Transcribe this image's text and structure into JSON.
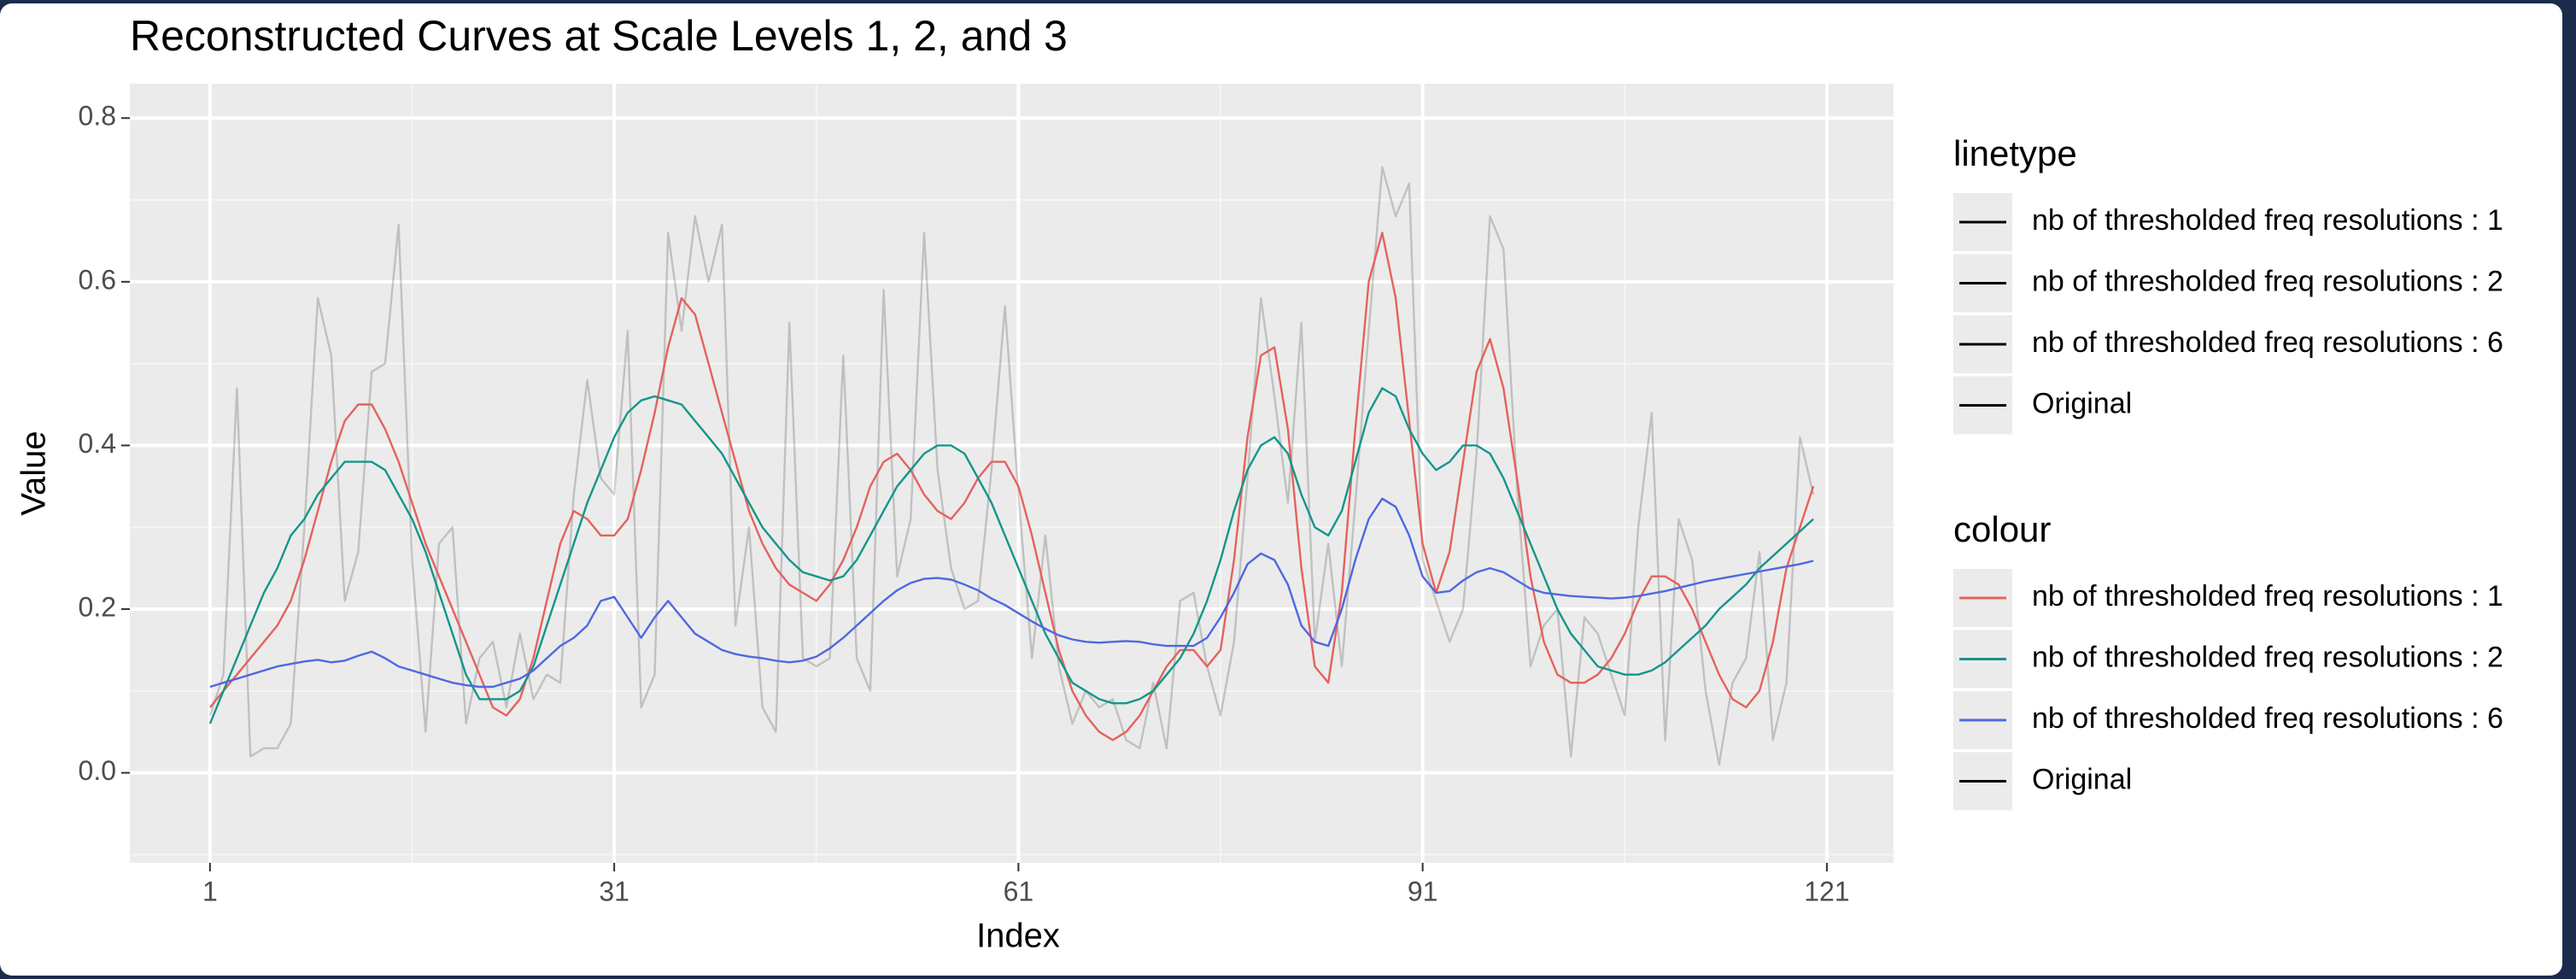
{
  "chart_data": {
    "type": "line",
    "title": "Reconstructed Curves at Scale Levels 1, 2, and 3",
    "x_label": "Index",
    "y_label": "Value",
    "xlim": [
      -4.95,
      125.95
    ],
    "ylim": [
      -0.11,
      0.842
    ],
    "xticks": [
      1,
      31,
      61,
      91,
      121
    ],
    "yticks": [
      {
        "value": 0,
        "label": "0.0"
      },
      {
        "value": 0.2,
        "label": "0.2"
      },
      {
        "value": 0.4,
        "label": "0.4"
      },
      {
        "value": 0.6,
        "label": "0.6"
      },
      {
        "value": 0.8,
        "label": "0.8"
      }
    ],
    "x_minor_ticks": [
      16,
      46,
      76,
      106
    ],
    "y_minor_ticks": [
      -0.1,
      0.1,
      0.3,
      0.5,
      0.7
    ],
    "grid": true,
    "linetype_legend_title": "linetype",
    "colour_legend_title": "colour",
    "x": [
      1,
      2,
      3,
      4,
      5,
      6,
      7,
      8,
      9,
      10,
      11,
      12,
      13,
      14,
      15,
      16,
      17,
      18,
      19,
      20,
      21,
      22,
      23,
      24,
      25,
      26,
      27,
      28,
      29,
      30,
      31,
      32,
      33,
      34,
      35,
      36,
      37,
      38,
      39,
      40,
      41,
      42,
      43,
      44,
      45,
      46,
      47,
      48,
      49,
      50,
      51,
      52,
      53,
      54,
      55,
      56,
      57,
      58,
      59,
      60,
      61,
      62,
      63,
      64,
      65,
      66,
      67,
      68,
      69,
      70,
      71,
      72,
      73,
      74,
      75,
      76,
      77,
      78,
      79,
      80,
      81,
      82,
      83,
      84,
      85,
      86,
      87,
      88,
      89,
      90,
      91,
      92,
      93,
      94,
      95,
      96,
      97,
      98,
      99,
      100,
      101,
      102,
      103,
      104,
      105,
      106,
      107,
      108,
      109,
      110,
      111,
      112,
      113,
      114,
      115,
      116,
      117,
      118,
      119,
      120
    ],
    "series": [
      {
        "name": "nb of thresholded freq resolutions : 1",
        "color": "#e5625d",
        "alpha": 1,
        "values": [
          0.08,
          0.1,
          0.12,
          0.14,
          0.16,
          0.18,
          0.21,
          0.26,
          0.32,
          0.38,
          0.43,
          0.45,
          0.45,
          0.42,
          0.38,
          0.33,
          0.28,
          0.24,
          0.2,
          0.16,
          0.12,
          0.08,
          0.07,
          0.09,
          0.14,
          0.21,
          0.28,
          0.32,
          0.31,
          0.29,
          0.29,
          0.31,
          0.37,
          0.44,
          0.52,
          0.58,
          0.56,
          0.5,
          0.44,
          0.38,
          0.32,
          0.28,
          0.25,
          0.23,
          0.22,
          0.21,
          0.23,
          0.26,
          0.3,
          0.35,
          0.38,
          0.39,
          0.37,
          0.34,
          0.32,
          0.31,
          0.33,
          0.36,
          0.38,
          0.38,
          0.35,
          0.29,
          0.22,
          0.15,
          0.1,
          0.07,
          0.05,
          0.04,
          0.05,
          0.07,
          0.1,
          0.13,
          0.15,
          0.15,
          0.13,
          0.15,
          0.26,
          0.41,
          0.51,
          0.52,
          0.42,
          0.25,
          0.13,
          0.11,
          0.22,
          0.42,
          0.6,
          0.66,
          0.58,
          0.43,
          0.28,
          0.22,
          0.27,
          0.38,
          0.49,
          0.53,
          0.47,
          0.36,
          0.24,
          0.16,
          0.12,
          0.11,
          0.11,
          0.12,
          0.14,
          0.17,
          0.21,
          0.24,
          0.24,
          0.23,
          0.2,
          0.16,
          0.12,
          0.09,
          0.08,
          0.1,
          0.16,
          0.25,
          0.3,
          0.35
        ]
      },
      {
        "name": "nb of thresholded freq resolutions : 2",
        "color": "#14968a",
        "alpha": 1,
        "values": [
          0.06,
          0.1,
          0.14,
          0.18,
          0.22,
          0.25,
          0.29,
          0.31,
          0.34,
          0.36,
          0.38,
          0.38,
          0.38,
          0.37,
          0.34,
          0.31,
          0.27,
          0.22,
          0.17,
          0.12,
          0.09,
          0.09,
          0.09,
          0.1,
          0.13,
          0.18,
          0.23,
          0.28,
          0.33,
          0.37,
          0.41,
          0.44,
          0.455,
          0.46,
          0.455,
          0.45,
          0.43,
          0.41,
          0.39,
          0.36,
          0.33,
          0.3,
          0.28,
          0.26,
          0.245,
          0.24,
          0.235,
          0.24,
          0.26,
          0.29,
          0.32,
          0.35,
          0.37,
          0.39,
          0.4,
          0.4,
          0.39,
          0.36,
          0.33,
          0.29,
          0.25,
          0.21,
          0.17,
          0.14,
          0.11,
          0.1,
          0.09,
          0.085,
          0.085,
          0.09,
          0.1,
          0.12,
          0.14,
          0.17,
          0.21,
          0.26,
          0.32,
          0.37,
          0.4,
          0.41,
          0.39,
          0.34,
          0.3,
          0.29,
          0.32,
          0.38,
          0.44,
          0.47,
          0.46,
          0.42,
          0.39,
          0.37,
          0.38,
          0.4,
          0.4,
          0.39,
          0.36,
          0.32,
          0.28,
          0.24,
          0.2,
          0.17,
          0.15,
          0.13,
          0.125,
          0.12,
          0.12,
          0.125,
          0.135,
          0.15,
          0.165,
          0.18,
          0.2,
          0.215,
          0.23,
          0.25,
          0.265,
          0.28,
          0.295,
          0.31
        ]
      },
      {
        "name": "nb of thresholded freq resolutions : 6",
        "color": "#4f68e0",
        "alpha": 1,
        "values": [
          0.105,
          0.11,
          0.115,
          0.12,
          0.125,
          0.13,
          0.133,
          0.136,
          0.138,
          0.135,
          0.137,
          0.143,
          0.148,
          0.14,
          0.13,
          0.125,
          0.12,
          0.115,
          0.11,
          0.107,
          0.105,
          0.105,
          0.11,
          0.115,
          0.125,
          0.14,
          0.155,
          0.165,
          0.18,
          0.21,
          0.215,
          0.19,
          0.165,
          0.19,
          0.21,
          0.19,
          0.17,
          0.16,
          0.15,
          0.145,
          0.142,
          0.14,
          0.137,
          0.135,
          0.137,
          0.142,
          0.152,
          0.165,
          0.18,
          0.195,
          0.21,
          0.223,
          0.232,
          0.237,
          0.238,
          0.236,
          0.23,
          0.223,
          0.213,
          0.205,
          0.195,
          0.185,
          0.176,
          0.168,
          0.163,
          0.16,
          0.159,
          0.16,
          0.161,
          0.16,
          0.157,
          0.155,
          0.155,
          0.155,
          0.165,
          0.19,
          0.22,
          0.255,
          0.268,
          0.26,
          0.23,
          0.18,
          0.16,
          0.155,
          0.2,
          0.26,
          0.31,
          0.335,
          0.325,
          0.29,
          0.24,
          0.22,
          0.222,
          0.235,
          0.245,
          0.25,
          0.245,
          0.235,
          0.225,
          0.22,
          0.218,
          0.216,
          0.215,
          0.214,
          0.213,
          0.214,
          0.216,
          0.219,
          0.222,
          0.226,
          0.23,
          0.234,
          0.237,
          0.24,
          0.243,
          0.246,
          0.249,
          0.252,
          0.255,
          0.259
        ]
      },
      {
        "name": "Original",
        "color": "#000000",
        "alpha": 0.18,
        "values": [
          0.07,
          0.12,
          0.47,
          0.02,
          0.03,
          0.03,
          0.06,
          0.3,
          0.58,
          0.51,
          0.21,
          0.27,
          0.49,
          0.5,
          0.67,
          0.26,
          0.05,
          0.28,
          0.3,
          0.06,
          0.14,
          0.16,
          0.08,
          0.17,
          0.09,
          0.12,
          0.11,
          0.34,
          0.48,
          0.36,
          0.34,
          0.54,
          0.08,
          0.12,
          0.66,
          0.54,
          0.68,
          0.6,
          0.67,
          0.18,
          0.3,
          0.08,
          0.05,
          0.55,
          0.14,
          0.13,
          0.14,
          0.51,
          0.14,
          0.1,
          0.59,
          0.24,
          0.31,
          0.66,
          0.37,
          0.25,
          0.2,
          0.21,
          0.37,
          0.57,
          0.34,
          0.14,
          0.29,
          0.13,
          0.06,
          0.1,
          0.08,
          0.09,
          0.04,
          0.03,
          0.11,
          0.03,
          0.21,
          0.22,
          0.13,
          0.07,
          0.16,
          0.36,
          0.58,
          0.46,
          0.33,
          0.55,
          0.16,
          0.28,
          0.13,
          0.33,
          0.54,
          0.74,
          0.68,
          0.72,
          0.26,
          0.21,
          0.16,
          0.2,
          0.39,
          0.68,
          0.64,
          0.35,
          0.13,
          0.18,
          0.2,
          0.02,
          0.19,
          0.17,
          0.12,
          0.07,
          0.3,
          0.44,
          0.04,
          0.31,
          0.26,
          0.1,
          0.01,
          0.11,
          0.14,
          0.27,
          0.04,
          0.11,
          0.41,
          0.34
        ]
      }
    ]
  }
}
